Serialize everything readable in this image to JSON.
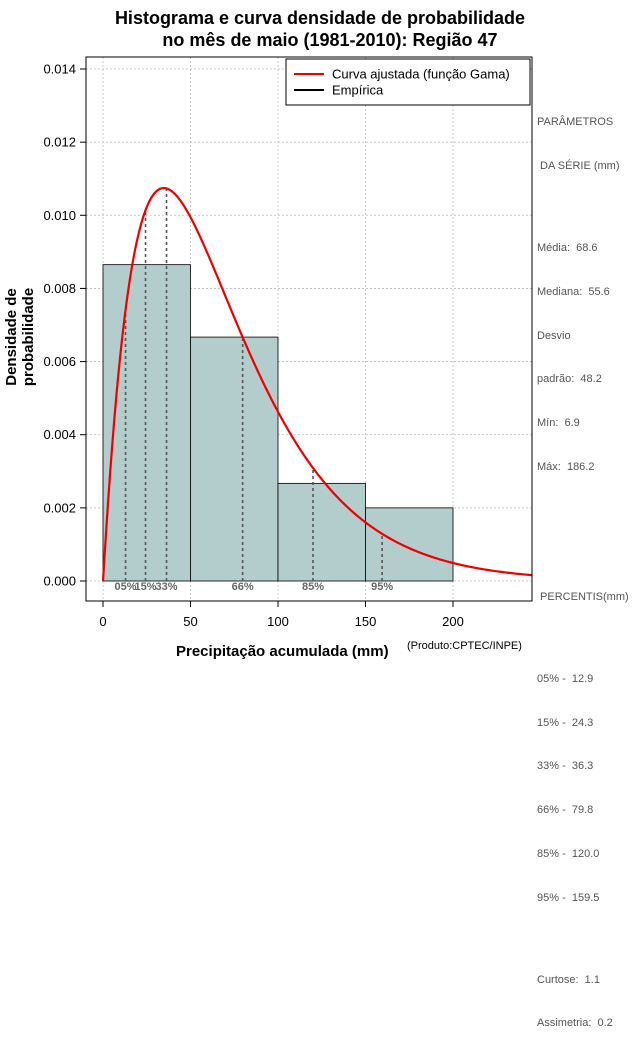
{
  "title": [
    "Histograma e curva densidade de probabilidade",
    "no mês de maio (1981-2010): Região 47"
  ],
  "ylabel": "Densidade de probabilidade",
  "xlabel": "Precipitação acumulada (mm)",
  "credit": "(Produto:CPTEC/INPE)",
  "colors": {
    "bar": "#b3cccc",
    "curve": "#ee0000",
    "grid": "#bbbbbb",
    "percentile": "#555555"
  },
  "legend": {
    "curve_label": "Curva ajustada (função Gama)",
    "empirical_label": "Empírica"
  },
  "stats": {
    "params_title_1": "PARÂMETROS",
    "params_title_2": " DA SÉRIE (mm)",
    "media": "Média:  68.6",
    "mediana": "Mediana:  55.6",
    "desvio_1": "Desvio",
    "desvio_2": "padrão:  48.2",
    "min": "Mín:  6.9",
    "max": "Máx:  186.2",
    "percentis_title": " PERCENTIS(mm)",
    "p05": "05% -  12.9",
    "p15": "15% -  24.3",
    "p33": "33% -  36.3",
    "p66": "66% -  79.8",
    "p85": "85% -  120.0",
    "p95": "95% -  159.5",
    "curtose": "Curtose:  1.1",
    "assimetria": "Assimetria:  0.2"
  },
  "chart_data": {
    "type": "bar",
    "title": "Histograma e curva densidade de probabilidade no mês de maio (1981-2010): Região 47",
    "xlabel": "Precipitação acumulada (mm)",
    "ylabel": "Densidade de probabilidade",
    "xlim": [
      -8,
      245
    ],
    "ylim": [
      -0.0006,
      0.0143
    ],
    "xticks": [
      0,
      50,
      100,
      150,
      200
    ],
    "xtick_labels": [
      "0",
      "50",
      "100",
      "150",
      "200"
    ],
    "yticks": [
      0,
      0.002,
      0.004,
      0.006,
      0.008,
      0.01,
      0.012,
      0.014
    ],
    "ytick_labels": [
      "0.000",
      "0.002",
      "0.004",
      "0.006",
      "0.008",
      "0.010",
      "0.012",
      "0.014"
    ],
    "grid": true,
    "legend_position": "top-right",
    "bins": [
      {
        "x0": 0,
        "x1": 50,
        "density": 0.00865
      },
      {
        "x0": 50,
        "x1": 100,
        "density": 0.00667
      },
      {
        "x0": 100,
        "x1": 150,
        "density": 0.00267
      },
      {
        "x0": 150,
        "x1": 200,
        "density": 0.002
      }
    ],
    "gamma_fit": {
      "shape": 2.025,
      "scale": 33.88,
      "name": "Curva ajustada (função Gama)"
    },
    "percentiles": [
      {
        "label": "05%",
        "value": 12.9
      },
      {
        "label": "15%",
        "value": 24.3
      },
      {
        "label": "33%",
        "value": 36.3
      },
      {
        "label": "66%",
        "value": 79.8
      },
      {
        "label": "85%",
        "value": 120.0
      },
      {
        "label": "95%",
        "value": 159.5
      }
    ]
  }
}
